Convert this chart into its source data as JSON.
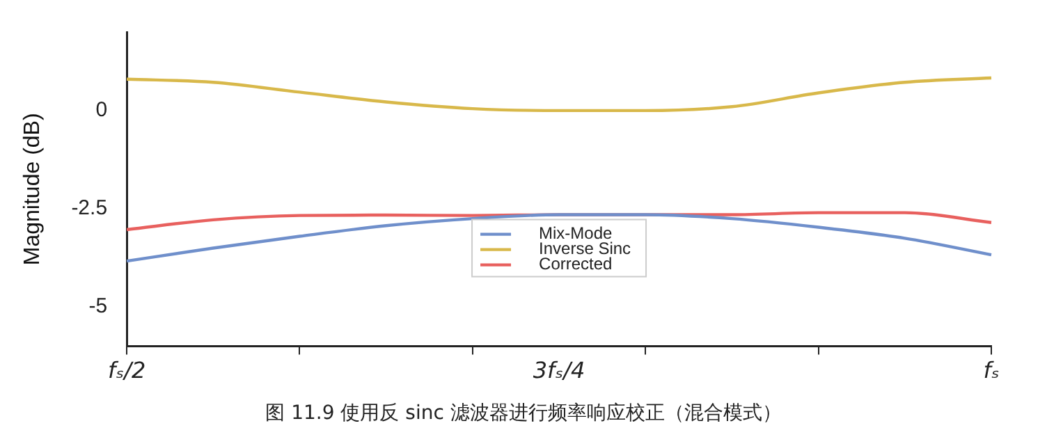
{
  "chart_data": {
    "type": "line",
    "ylabel": "Magnitude (dB)",
    "categories": [
      "fₛ/2",
      null,
      null,
      null,
      null,
      "3fₛ/4",
      null,
      null,
      null,
      null,
      "fₛ"
    ],
    "series": [
      {
        "name": "Mix-Mode",
        "color": "#6f8fcb",
        "values": [
          -3.83,
          -3.5,
          -3.2,
          -2.93,
          -2.75,
          -2.65,
          -2.65,
          -2.75,
          -2.97,
          -3.25,
          -3.67
        ]
      },
      {
        "name": "Inverse Sinc",
        "color": "#d8b84a",
        "values": [
          0.8,
          0.72,
          0.47,
          0.22,
          0.05,
          0.0,
          0.0,
          0.1,
          0.45,
          0.72,
          0.83
        ]
      },
      {
        "name": "Corrected",
        "color": "#e8605e",
        "values": [
          -3.03,
          -2.78,
          -2.67,
          -2.66,
          -2.67,
          -2.65,
          -2.65,
          -2.65,
          -2.6,
          -2.6,
          -2.85
        ]
      }
    ],
    "ylim": [
      -6,
      2
    ],
    "yticks": [
      {
        "value": -5,
        "label": "-5"
      },
      {
        "value": -2.5,
        "label": "-2.5"
      },
      {
        "value": 0,
        "label": "0"
      }
    ],
    "grid": false,
    "legend": "bottom",
    "marker": "none",
    "line_style": "solid",
    "annotations": [
      "图 11.9 使用反 sinc 滤波器进行频率响应校正（混合模式）"
    ]
  }
}
